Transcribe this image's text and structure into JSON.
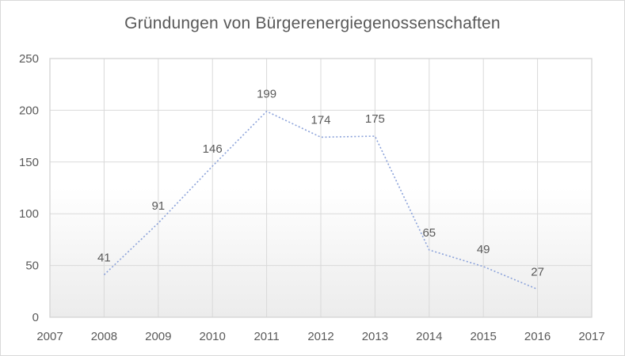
{
  "chart_data": {
    "type": "line",
    "title": "Gründungen von Bürgerenergiegenossenschaften",
    "x": [
      2008,
      2009,
      2010,
      2011,
      2012,
      2013,
      2014,
      2015,
      2016
    ],
    "values": [
      41,
      91,
      146,
      199,
      174,
      175,
      65,
      49,
      27
    ],
    "series_name": "Gründungen",
    "xlabel": "",
    "ylabel": "",
    "xlim": [
      2007,
      2017
    ],
    "ylim": [
      0,
      250
    ],
    "x_ticks": [
      2007,
      2008,
      2009,
      2010,
      2011,
      2012,
      2013,
      2014,
      2015,
      2016,
      2017
    ],
    "y_ticks": [
      0,
      50,
      100,
      150,
      200,
      250
    ],
    "grid": true,
    "legend": "none",
    "line_style": "dotted",
    "data_labels": true,
    "colors": {
      "line": "#8ba2da",
      "text": "#595959",
      "gridline": "#d9d9d9",
      "plot_border": "#d4d4d4",
      "canvas_border": "#d9d9d9",
      "plot_fill_top": "#ffffff",
      "plot_fill_bottom": "#ececec"
    }
  }
}
